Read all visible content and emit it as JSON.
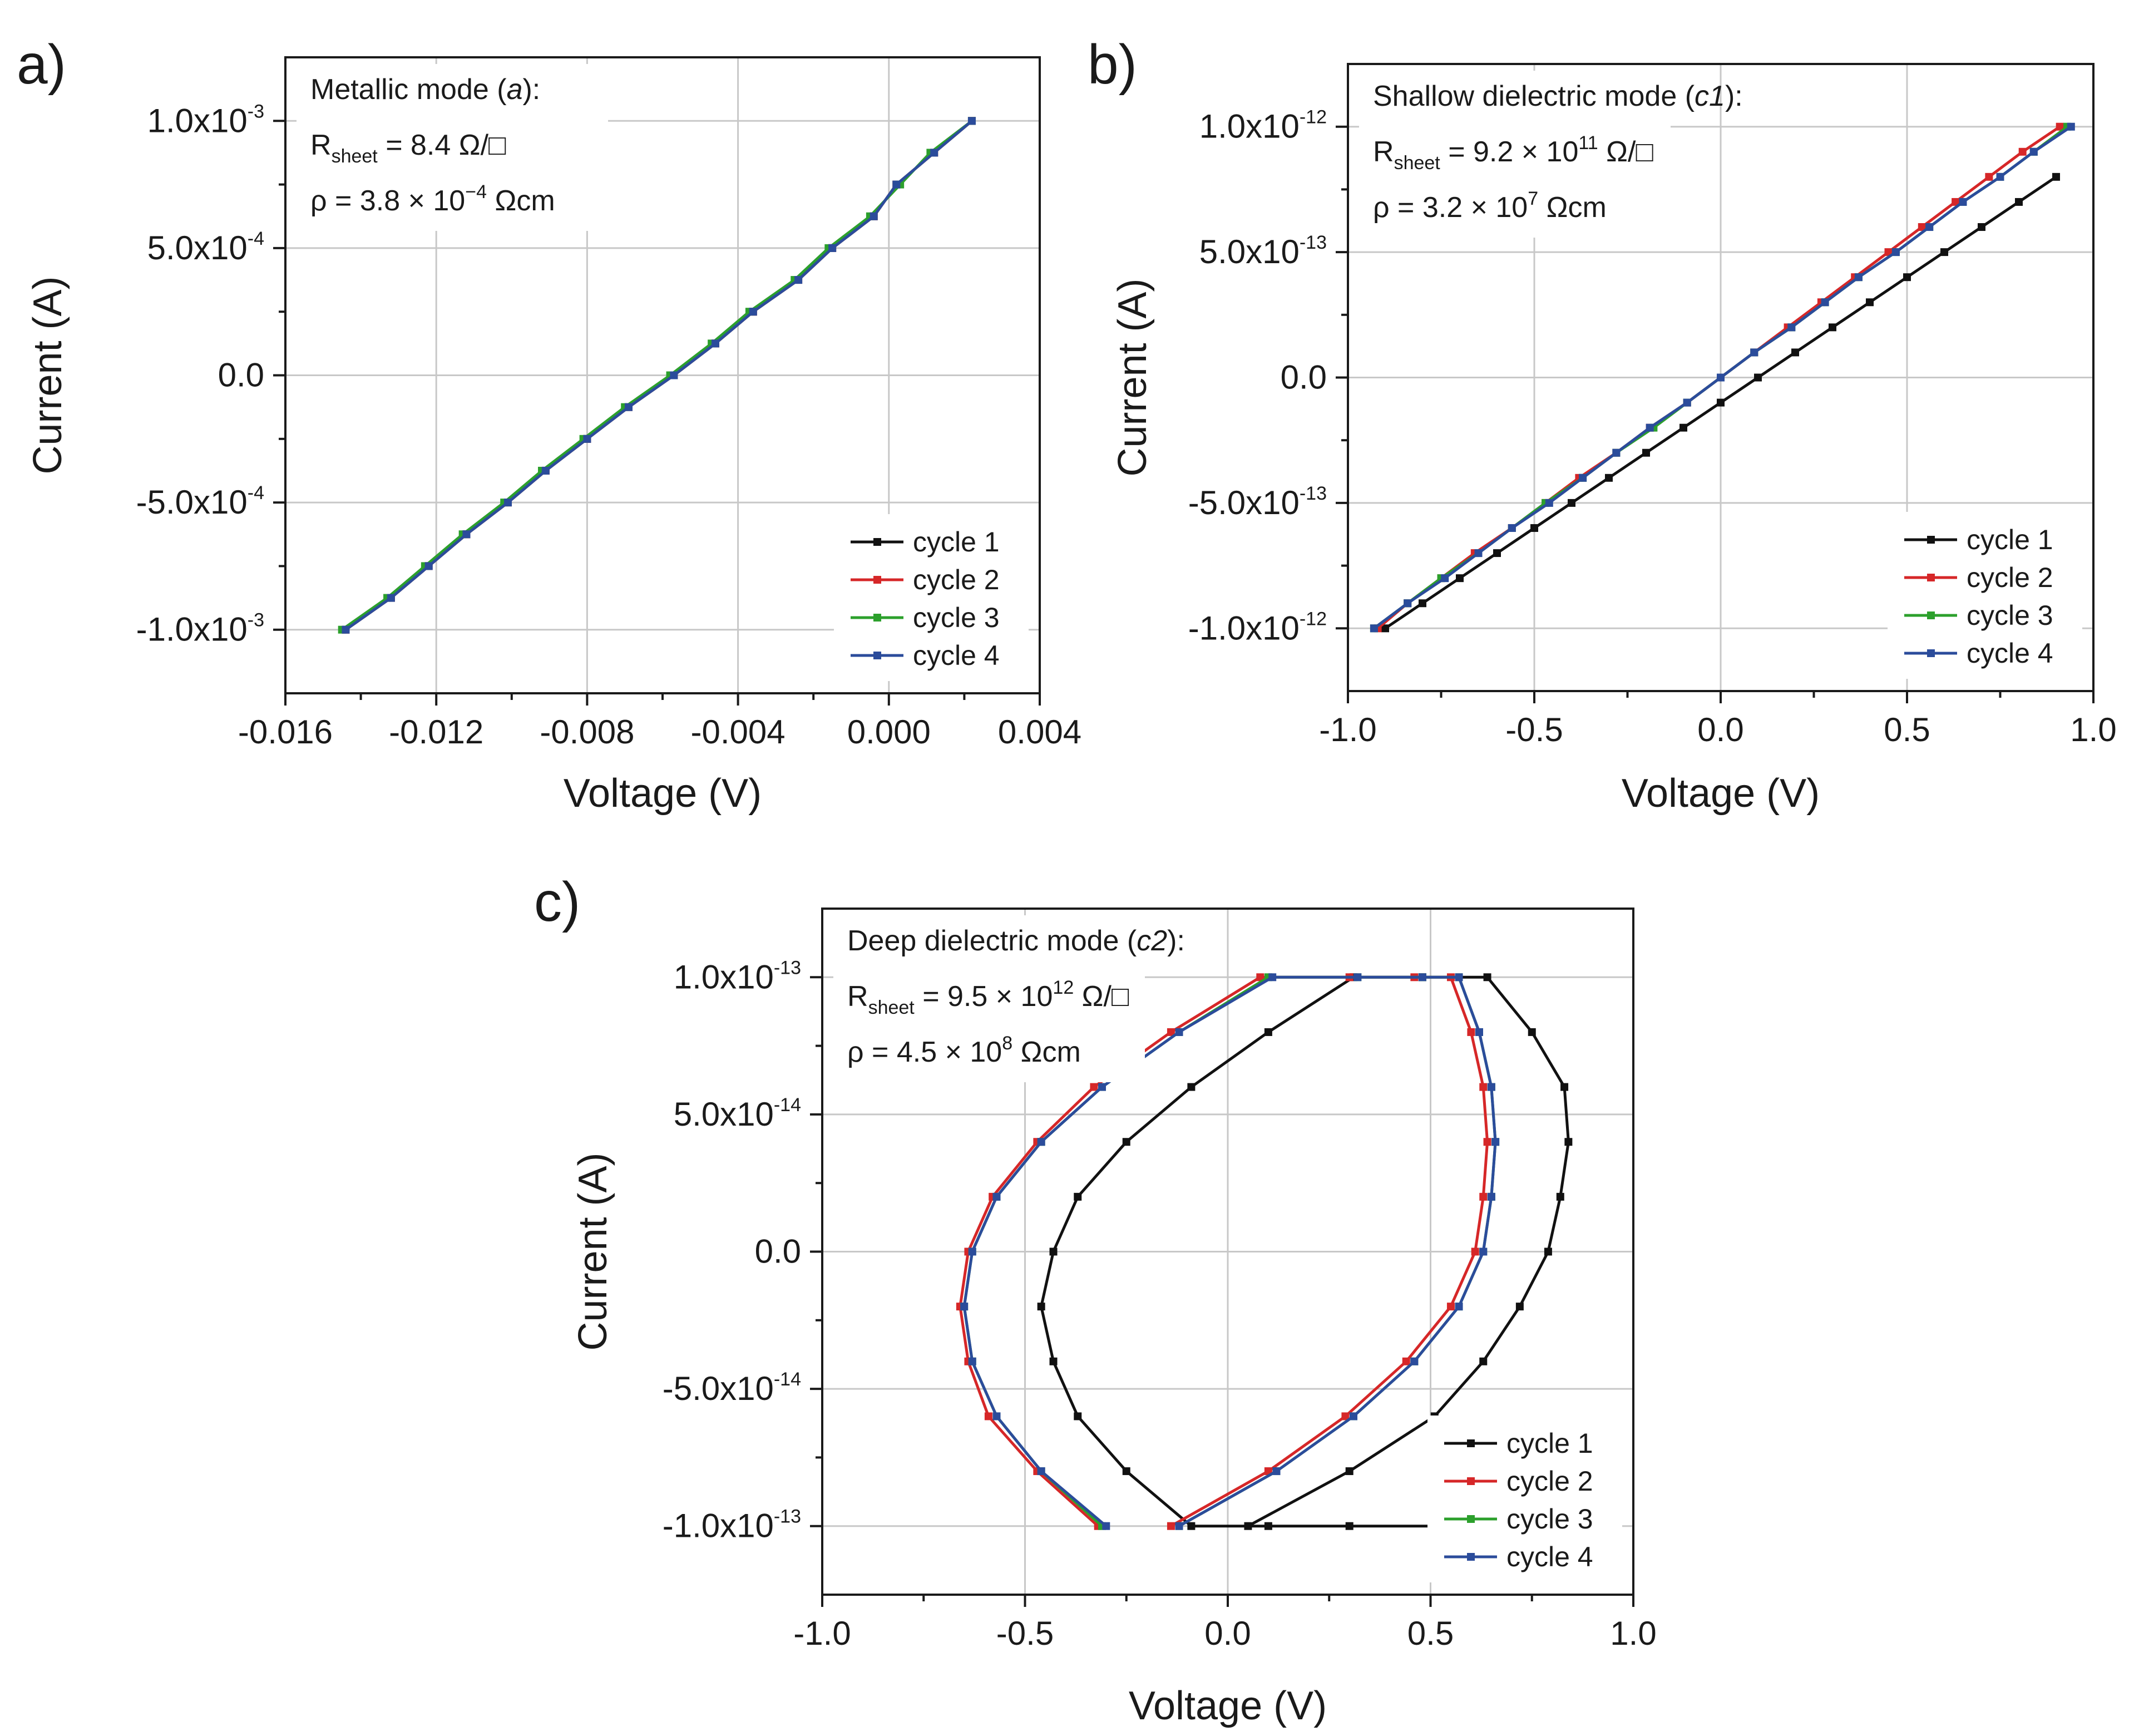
{
  "chart_data": [
    {
      "id": "a",
      "type": "line",
      "panel_label": "a)",
      "title": "",
      "xlabel": "Voltage (V)",
      "ylabel": "Current (A)",
      "xlim": [
        -0.016,
        0.004
      ],
      "ylim": [
        -0.00125,
        0.00125
      ],
      "x_ticks": [
        -0.016,
        -0.012,
        -0.008,
        -0.004,
        0.0,
        0.004
      ],
      "x_tick_labels": [
        "-0.016",
        "-0.012",
        "-0.008",
        "-0.004",
        "0.000",
        "0.004"
      ],
      "y_ticks": [
        -0.001,
        -0.0005,
        0.0,
        0.0005,
        0.001
      ],
      "y_tick_mantissas": [
        "-1.0x10",
        "-5.0x10",
        "0.0",
        "5.0x10",
        "1.0x10"
      ],
      "y_tick_exponents": [
        "-3",
        "-4",
        "",
        "-4",
        "-3"
      ],
      "grid": true,
      "annotation": {
        "mode_prefix": "Metallic mode (",
        "mode_italic": "a",
        "mode_suffix": "):",
        "r_symbol": "R",
        "r_subscript": "sheet",
        "r_mantissa": " = 8.4 Ω/□",
        "r_exponent": "",
        "r_unit": "",
        "rho_mantissa": "ρ = 3.8 × 10",
        "rho_exponent": "−4",
        "rho_unit": " Ωcm"
      },
      "legend_position": "bottom-right",
      "series": [
        {
          "name": "cycle 1",
          "color": "#111111",
          "x": [
            -0.0144,
            -0.0132,
            -0.0122,
            -0.0112,
            -0.0101,
            -0.0091,
            -0.008,
            -0.0069,
            -0.0057,
            -0.0046,
            -0.0036,
            -0.0024,
            -0.0015,
            -0.0004,
            0.0002,
            0.0012,
            0.0022
          ],
          "y": [
            -0.001,
            -0.000875,
            -0.00075,
            -0.000625,
            -0.0005,
            -0.000375,
            -0.00025,
            -0.000125,
            0.0,
            0.000125,
            0.00025,
            0.000375,
            0.0005,
            0.000625,
            0.00075,
            0.000875,
            0.001
          ]
        },
        {
          "name": "cycle 2",
          "color": "#d62728",
          "x": [
            -0.0144,
            -0.0132,
            -0.0122,
            -0.0112,
            -0.0101,
            -0.0091,
            -0.008,
            -0.0069,
            -0.0057,
            -0.0046,
            -0.0036,
            -0.0024,
            -0.0015,
            -0.0004,
            0.0002,
            0.0012,
            0.0022
          ],
          "y": [
            -0.001,
            -0.000875,
            -0.00075,
            -0.000625,
            -0.0005,
            -0.000375,
            -0.00025,
            -0.000125,
            0.0,
            0.000125,
            0.00025,
            0.000375,
            0.0005,
            0.000625,
            0.00075,
            0.000875,
            0.001
          ]
        },
        {
          "name": "cycle 3",
          "color": "#2ca02c",
          "x": [
            -0.0145,
            -0.0133,
            -0.0123,
            -0.0113,
            -0.0102,
            -0.0092,
            -0.0081,
            -0.007,
            -0.0058,
            -0.0047,
            -0.0037,
            -0.0025,
            -0.0016,
            -0.0005,
            0.0003,
            0.0011,
            0.0022
          ],
          "y": [
            -0.001,
            -0.000875,
            -0.00075,
            -0.000625,
            -0.0005,
            -0.000375,
            -0.00025,
            -0.000125,
            0.0,
            0.000125,
            0.00025,
            0.000375,
            0.0005,
            0.000625,
            0.00075,
            0.000875,
            0.001
          ]
        },
        {
          "name": "cycle 4",
          "color": "#2b4c9b",
          "x": [
            -0.0144,
            -0.0132,
            -0.0122,
            -0.0112,
            -0.0101,
            -0.0091,
            -0.008,
            -0.0069,
            -0.0057,
            -0.0046,
            -0.0036,
            -0.0024,
            -0.0015,
            -0.0004,
            0.0002,
            0.0012,
            0.0022
          ],
          "y": [
            -0.001,
            -0.000875,
            -0.00075,
            -0.000625,
            -0.0005,
            -0.000375,
            -0.00025,
            -0.000125,
            0.0,
            0.000125,
            0.00025,
            0.000375,
            0.0005,
            0.000625,
            0.00075,
            0.000875,
            0.001
          ]
        }
      ]
    },
    {
      "id": "b",
      "type": "line",
      "panel_label": "b)",
      "title": "",
      "xlabel": "Voltage (V)",
      "ylabel": "Current (A)",
      "xlim": [
        -1.0,
        1.0
      ],
      "ylim": [
        -1.25e-12,
        1.25e-12
      ],
      "x_ticks": [
        -1.0,
        -0.5,
        0.0,
        0.5,
        1.0
      ],
      "x_tick_labels": [
        "-1.0",
        "-0.5",
        "0.0",
        "0.5",
        "1.0"
      ],
      "y_ticks": [
        -1e-12,
        -5e-13,
        0.0,
        5e-13,
        1e-12
      ],
      "y_tick_mantissas": [
        "-1.0x10",
        "-5.0x10",
        "0.0",
        "5.0x10",
        "1.0x10"
      ],
      "y_tick_exponents": [
        "-12",
        "-13",
        "",
        "-13",
        "-12"
      ],
      "grid": true,
      "annotation": {
        "mode_prefix": "Shallow dielectric mode (",
        "mode_italic": "c1",
        "mode_suffix": "):",
        "r_symbol": "R",
        "r_subscript": "sheet",
        "r_mantissa": " = 9.2 × 10",
        "r_exponent": "11",
        "r_unit": " Ω/□",
        "rho_mantissa": "ρ = 3.2 × 10",
        "rho_exponent": "7",
        "rho_unit": " Ωcm"
      },
      "legend_position": "bottom-right",
      "series": [
        {
          "name": "cycle 1",
          "color": "#111111",
          "x": [
            -0.9,
            -0.8,
            -0.7,
            -0.6,
            -0.5,
            -0.4,
            -0.3,
            -0.2,
            -0.1,
            0.0,
            0.1,
            0.2,
            0.3,
            0.4,
            0.5,
            0.6,
            0.7,
            0.8,
            0.9
          ],
          "y": [
            -1e-12,
            -9e-13,
            -8e-13,
            -7e-13,
            -6e-13,
            -5e-13,
            -4e-13,
            -3e-13,
            -2e-13,
            -1e-13,
            0.0,
            1e-13,
            2e-13,
            3e-13,
            4e-13,
            5e-13,
            6e-13,
            7e-13,
            8e-13
          ]
        },
        {
          "name": "cycle 2",
          "color": "#d62728",
          "x": [
            -0.92,
            -0.84,
            -0.75,
            -0.66,
            -0.56,
            -0.47,
            -0.38,
            -0.28,
            -0.19,
            -0.09,
            0.0,
            0.09,
            0.18,
            0.27,
            0.36,
            0.45,
            0.54,
            0.63,
            0.72,
            0.81,
            0.91
          ],
          "y": [
            -1e-12,
            -9e-13,
            -8e-13,
            -7e-13,
            -6e-13,
            -5e-13,
            -4e-13,
            -3e-13,
            -2e-13,
            -1e-13,
            0.0,
            1e-13,
            2e-13,
            3e-13,
            4e-13,
            5e-13,
            6e-13,
            7e-13,
            8e-13,
            9e-13,
            1e-12
          ]
        },
        {
          "name": "cycle 3",
          "color": "#2ca02c",
          "x": [
            -0.93,
            -0.84,
            -0.75,
            -0.65,
            -0.56,
            -0.47,
            -0.37,
            -0.28,
            -0.18,
            -0.09,
            0.0,
            0.09,
            0.19,
            0.28,
            0.37,
            0.47,
            0.56,
            0.65,
            0.75,
            0.84,
            0.93
          ],
          "y": [
            -1e-12,
            -9e-13,
            -8e-13,
            -7e-13,
            -6e-13,
            -5e-13,
            -4e-13,
            -3e-13,
            -2e-13,
            -1e-13,
            0.0,
            1e-13,
            2e-13,
            3e-13,
            4e-13,
            5e-13,
            6e-13,
            7e-13,
            8e-13,
            9e-13,
            1e-12
          ]
        },
        {
          "name": "cycle 4",
          "color": "#2b4c9b",
          "x": [
            -0.93,
            -0.84,
            -0.74,
            -0.65,
            -0.56,
            -0.46,
            -0.37,
            -0.28,
            -0.19,
            -0.09,
            0.0,
            0.09,
            0.19,
            0.28,
            0.37,
            0.47,
            0.56,
            0.65,
            0.75,
            0.84,
            0.94
          ],
          "y": [
            -1e-12,
            -9e-13,
            -8e-13,
            -7e-13,
            -6e-13,
            -5e-13,
            -4e-13,
            -3e-13,
            -2e-13,
            -1e-13,
            0.0,
            1e-13,
            2e-13,
            3e-13,
            4e-13,
            5e-13,
            6e-13,
            7e-13,
            8e-13,
            9e-13,
            1e-12
          ]
        }
      ]
    },
    {
      "id": "c",
      "type": "line",
      "panel_label": "c)",
      "title": "",
      "xlabel": "Voltage (V)",
      "ylabel": "Current (A)",
      "xlim": [
        -1.0,
        1.0
      ],
      "ylim": [
        -1.25e-13,
        1.25e-13
      ],
      "x_ticks": [
        -1.0,
        -0.5,
        0.0,
        0.5,
        1.0
      ],
      "x_tick_labels": [
        "-1.0",
        "-0.5",
        "0.0",
        "0.5",
        "1.0"
      ],
      "y_ticks": [
        -1e-13,
        -5e-14,
        0.0,
        5e-14,
        1e-13
      ],
      "y_tick_mantissas": [
        "-1.0x10",
        "-5.0x10",
        "0.0",
        "5.0x10",
        "1.0x10"
      ],
      "y_tick_exponents": [
        "-13",
        "-14",
        "",
        "-14",
        "-13"
      ],
      "grid": true,
      "annotation": {
        "mode_prefix": "Deep dielectric mode (",
        "mode_italic": "c2",
        "mode_suffix": "):",
        "r_symbol": "R",
        "r_subscript": "sheet",
        "r_mantissa": " = 9.5 × 10",
        "r_exponent": "12",
        "r_unit": " Ω/□",
        "rho_mantissa": "ρ = 4.5 × 10",
        "rho_exponent": "8",
        "rho_unit": " Ωcm"
      },
      "legend_position": "bottom-right",
      "series": [
        {
          "name": "cycle 1",
          "color": "#111111",
          "x": [
            0.05,
            0.3,
            0.51,
            0.63,
            0.72,
            0.79,
            0.82,
            0.84,
            0.83,
            0.75,
            0.64,
            0.48,
            0.31,
            0.1,
            -0.09,
            -0.25,
            -0.37,
            -0.43,
            -0.46,
            -0.43,
            -0.37,
            -0.25,
            -0.09,
            0.1,
            0.3,
            0.51
          ],
          "y": [
            -1e-13,
            -8e-14,
            -6e-14,
            -4e-14,
            -2e-14,
            0.0,
            2e-14,
            4e-14,
            6e-14,
            8e-14,
            1e-13,
            1e-13,
            1e-13,
            8e-14,
            6e-14,
            4e-14,
            2e-14,
            0.0,
            -2e-14,
            -4e-14,
            -6e-14,
            -8e-14,
            -1e-13,
            -1e-13,
            -1e-13,
            -1e-13
          ]
        },
        {
          "name": "cycle 2",
          "color": "#d62728",
          "x": [
            -0.14,
            0.1,
            0.29,
            0.44,
            0.55,
            0.61,
            0.63,
            0.64,
            0.63,
            0.6,
            0.55,
            0.46,
            0.3,
            0.08,
            -0.14,
            -0.33,
            -0.47,
            -0.58,
            -0.64,
            -0.66,
            -0.64,
            -0.59,
            -0.47,
            -0.32
          ],
          "y": [
            -1e-13,
            -8e-14,
            -6e-14,
            -4e-14,
            -2e-14,
            0.0,
            2e-14,
            4e-14,
            6e-14,
            8e-14,
            1e-13,
            1e-13,
            1e-13,
            1e-13,
            8e-14,
            6e-14,
            4e-14,
            2e-14,
            0.0,
            -2e-14,
            -4e-14,
            -6e-14,
            -8e-14,
            -1e-13
          ]
        },
        {
          "name": "cycle 3",
          "color": "#2ca02c",
          "x": [
            -0.12,
            0.12,
            0.31,
            0.46,
            0.57,
            0.63,
            0.65,
            0.66,
            0.65,
            0.62,
            0.57,
            0.48,
            0.32,
            0.1,
            -0.12,
            -0.31,
            -0.46,
            -0.57,
            -0.63,
            -0.65,
            -0.63,
            -0.57,
            -0.46,
            -0.31
          ],
          "y": [
            -1e-13,
            -8e-14,
            -6e-14,
            -4e-14,
            -2e-14,
            0.0,
            2e-14,
            4e-14,
            6e-14,
            8e-14,
            1e-13,
            1e-13,
            1e-13,
            1e-13,
            8e-14,
            6e-14,
            4e-14,
            2e-14,
            0.0,
            -2e-14,
            -4e-14,
            -6e-14,
            -8e-14,
            -1e-13
          ]
        },
        {
          "name": "cycle 4",
          "color": "#2b4c9b",
          "x": [
            -0.12,
            0.12,
            0.31,
            0.46,
            0.57,
            0.63,
            0.65,
            0.66,
            0.65,
            0.62,
            0.57,
            0.48,
            0.32,
            0.11,
            -0.12,
            -0.31,
            -0.46,
            -0.57,
            -0.63,
            -0.65,
            -0.63,
            -0.57,
            -0.46,
            -0.3
          ],
          "y": [
            -1e-13,
            -8e-14,
            -6e-14,
            -4e-14,
            -2e-14,
            0.0,
            2e-14,
            4e-14,
            6e-14,
            8e-14,
            1e-13,
            1e-13,
            1e-13,
            1e-13,
            8e-14,
            6e-14,
            4e-14,
            2e-14,
            0.0,
            -2e-14,
            -4e-14,
            -6e-14,
            -8e-14,
            -1e-13
          ]
        }
      ]
    }
  ]
}
